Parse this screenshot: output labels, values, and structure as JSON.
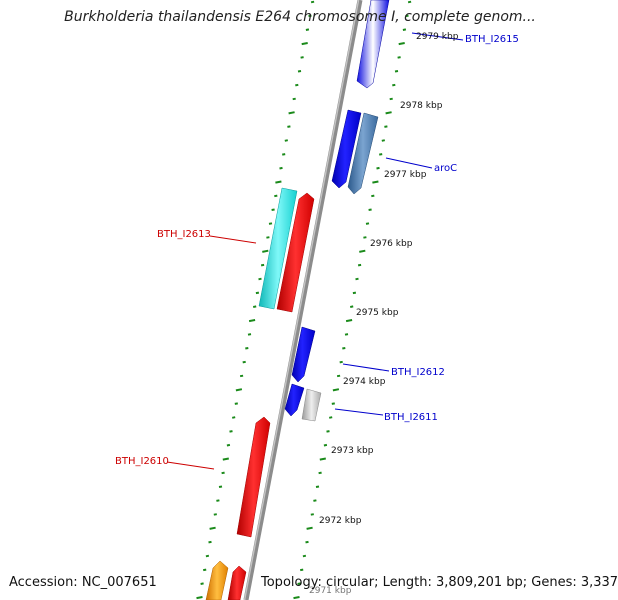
{
  "title": "Burkholderia thailandensis E264 chromosome I, complete genom...",
  "footer": {
    "accession_label": "Accession: NC_007651",
    "summary_label": "Topology: circular; Length: 3,809,201 bp; Genes: 3,337"
  },
  "colors": {
    "backbone": "#8c8c8c",
    "tick": "#1a8a1a",
    "forward_label": "#0000cc",
    "reverse_label": "#cc0000",
    "gene_blue": "#1010e0",
    "gene_steel": "#4f81b8",
    "gene_gray": "#c0c0c0",
    "gene_cyan": "#19e6e6",
    "gene_red": "#ee1010",
    "gene_orange": "#f59a10"
  },
  "kbp_labels": [
    "2979 kbp",
    "2978 kbp",
    "2977 kbp",
    "2976 kbp",
    "2975 kbp",
    "2974 kbp",
    "2973 kbp",
    "2972 kbp",
    "2971 kbp"
  ],
  "gene_labels": [
    {
      "name": "BTH_I2615",
      "strand": "forward"
    },
    {
      "name": "aroC",
      "strand": "forward"
    },
    {
      "name": "BTH_I2613",
      "strand": "reverse"
    },
    {
      "name": "BTH_I2612",
      "strand": "forward"
    },
    {
      "name": "BTH_I2611",
      "strand": "forward"
    },
    {
      "name": "BTH_I2610",
      "strand": "reverse"
    }
  ]
}
